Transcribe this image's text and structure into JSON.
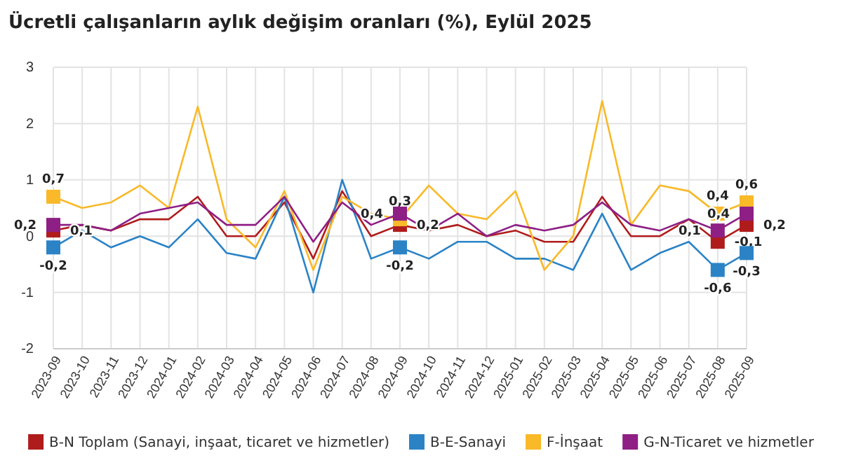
{
  "chart_data": {
    "type": "line",
    "title": "Ücretli çalışanların aylık değişim oranları (%), Eylül 2025",
    "categories": [
      "2023-09",
      "2023-10",
      "2023-11",
      "2023-12",
      "2024-01",
      "2024-02",
      "2024-03",
      "2024-04",
      "2024-05",
      "2024-06",
      "2024-07",
      "2024-08",
      "2024-09",
      "2024-10",
      "2024-11",
      "2024-12",
      "2025-01",
      "2025-02",
      "2025-03",
      "2025-04",
      "2025-05",
      "2025-06",
      "2025-07",
      "2025-08",
      "2025-09"
    ],
    "series": [
      {
        "name": "B-N Toplam (Sanayi, inşaat, ticaret ve hizmetler)",
        "color": "#b01c1c",
        "values": [
          0.1,
          0.2,
          0.1,
          0.3,
          0.3,
          0.7,
          0,
          0,
          0.6,
          -0.4,
          0.8,
          0,
          0.2,
          0.1,
          0.2,
          0,
          0.1,
          -0.1,
          -0.1,
          0.7,
          0,
          0,
          0.3,
          -0.1,
          0.2
        ],
        "value_labels": [
          "0,1",
          null,
          null,
          null,
          null,
          null,
          null,
          null,
          null,
          null,
          null,
          null,
          "0,2",
          null,
          null,
          null,
          null,
          null,
          null,
          null,
          null,
          null,
          null,
          "-0,1",
          "0,2"
        ]
      },
      {
        "name": "B-E-Sanayi",
        "color": "#2b83c6",
        "values": [
          -0.2,
          0.1,
          -0.2,
          0,
          -0.2,
          0.3,
          -0.3,
          -0.4,
          0.7,
          -1.0,
          1.0,
          -0.4,
          -0.2,
          -0.4,
          -0.1,
          -0.1,
          -0.4,
          -0.4,
          -0.6,
          0.4,
          -0.6,
          -0.3,
          -0.1,
          -0.6,
          -0.3
        ],
        "value_labels": [
          "-0,2",
          null,
          null,
          null,
          null,
          null,
          null,
          null,
          null,
          null,
          null,
          null,
          "-0,2",
          null,
          null,
          null,
          null,
          null,
          null,
          null,
          null,
          null,
          null,
          "-0,6",
          "-0,3"
        ]
      },
      {
        "name": "F-İnşaat",
        "color": "#f9b928",
        "values": [
          0.7,
          0.5,
          0.6,
          0.9,
          0.5,
          2.3,
          0.3,
          -0.2,
          0.8,
          -0.6,
          0.7,
          0.4,
          0.3,
          0.9,
          0.4,
          0.3,
          0.8,
          -0.6,
          0,
          2.4,
          0.2,
          0.9,
          0.8,
          0.4,
          0.6
        ],
        "value_labels": [
          "0,7",
          null,
          null,
          null,
          null,
          null,
          null,
          null,
          null,
          null,
          null,
          null,
          "0,3",
          null,
          null,
          null,
          null,
          null,
          null,
          null,
          null,
          null,
          null,
          "0,4",
          "0,6"
        ]
      },
      {
        "name": "G-N-Ticaret ve hizmetler",
        "color": "#8e1f85",
        "values": [
          0.2,
          0.2,
          0.1,
          0.4,
          0.5,
          0.6,
          0.2,
          0.2,
          0.7,
          -0.1,
          0.6,
          0.2,
          0.4,
          0.1,
          0.4,
          0,
          0.2,
          0.1,
          0.2,
          0.6,
          0.2,
          0.1,
          0.3,
          0.1,
          0.4
        ],
        "value_labels": [
          "0,2",
          null,
          null,
          null,
          null,
          null,
          null,
          null,
          null,
          null,
          null,
          null,
          "0,4",
          null,
          null,
          null,
          null,
          null,
          null,
          null,
          null,
          null,
          null,
          "0,1",
          "0,4"
        ]
      }
    ],
    "ylim": [
      -2,
      3
    ],
    "yticks": [
      -2,
      -1,
      0,
      1,
      2,
      3
    ],
    "grid": true,
    "legend": "bottom",
    "line_style": "solid"
  }
}
